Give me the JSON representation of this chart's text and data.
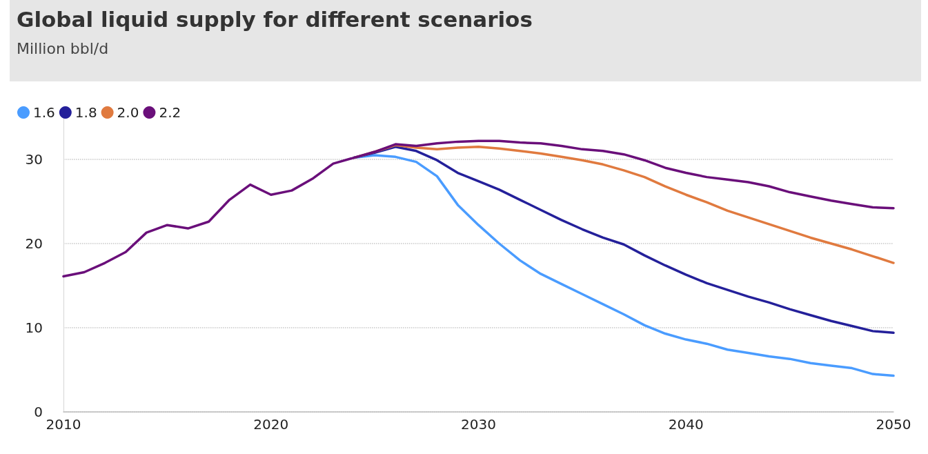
{
  "chart_data": {
    "type": "line",
    "title": "Global liquid supply for different scenarios",
    "subtitle": "Million bbl/d",
    "x": [
      2010,
      2011,
      2012,
      2013,
      2014,
      2015,
      2016,
      2017,
      2018,
      2019,
      2020,
      2021,
      2022,
      2023,
      2024,
      2025,
      2026,
      2027,
      2028,
      2029,
      2030,
      2031,
      2032,
      2033,
      2034,
      2035,
      2036,
      2037,
      2038,
      2039,
      2040,
      2041,
      2042,
      2043,
      2044,
      2045,
      2046,
      2047,
      2048,
      2049,
      2050
    ],
    "series": [
      {
        "name": "1.6",
        "color": "#4a9cff",
        "values": [
          null,
          null,
          null,
          null,
          null,
          null,
          null,
          null,
          null,
          null,
          null,
          null,
          null,
          null,
          30.2,
          30.5,
          30.3,
          29.7,
          28.0,
          24.6,
          22.2,
          20.0,
          18.0,
          16.4,
          15.2,
          14.0,
          12.8,
          11.6,
          10.3,
          9.3,
          8.6,
          8.1,
          7.4,
          7.0,
          6.6,
          6.3,
          5.8,
          5.5,
          5.2,
          4.5,
          4.3
        ]
      },
      {
        "name": "1.8",
        "color": "#24209a",
        "values": [
          null,
          null,
          null,
          null,
          null,
          null,
          null,
          null,
          null,
          null,
          null,
          null,
          null,
          null,
          30.2,
          30.8,
          31.5,
          31.0,
          29.9,
          28.4,
          27.4,
          26.4,
          25.2,
          24.0,
          22.8,
          21.7,
          20.7,
          19.9,
          18.6,
          17.4,
          16.3,
          15.3,
          14.5,
          13.7,
          13.0,
          12.2,
          11.5,
          10.8,
          10.2,
          9.6,
          9.4
        ]
      },
      {
        "name": "2.0",
        "color": "#e07a3f",
        "values": [
          null,
          null,
          null,
          null,
          null,
          null,
          null,
          null,
          null,
          null,
          null,
          null,
          null,
          null,
          30.2,
          30.9,
          31.7,
          31.4,
          31.2,
          31.4,
          31.5,
          31.3,
          31.0,
          30.7,
          30.3,
          29.9,
          29.4,
          28.7,
          27.9,
          26.8,
          25.8,
          24.9,
          23.9,
          23.1,
          22.3,
          21.5,
          20.7,
          20.0,
          19.3,
          18.5,
          17.7
        ]
      },
      {
        "name": "2.2",
        "color": "#6a0f7a",
        "values": [
          16.1,
          16.6,
          17.7,
          19.0,
          21.3,
          22.2,
          21.8,
          22.6,
          25.2,
          27.0,
          25.8,
          26.3,
          27.7,
          29.5,
          30.2,
          30.9,
          31.8,
          31.6,
          31.9,
          32.1,
          32.2,
          32.2,
          32.0,
          31.9,
          31.6,
          31.2,
          31.0,
          30.6,
          29.9,
          29.0,
          28.4,
          27.9,
          27.6,
          27.3,
          26.8,
          26.1,
          25.6,
          25.1,
          24.7,
          24.3,
          24.2
        ]
      }
    ],
    "xlim": [
      2010,
      2050
    ],
    "xticks": [
      2010,
      2020,
      2030,
      2040,
      2050
    ],
    "ylim": [
      0,
      35
    ],
    "yticks": [
      0,
      10,
      20,
      30
    ],
    "grid": "y",
    "legend": "top left",
    "marker": "none",
    "line_style": "solid"
  }
}
